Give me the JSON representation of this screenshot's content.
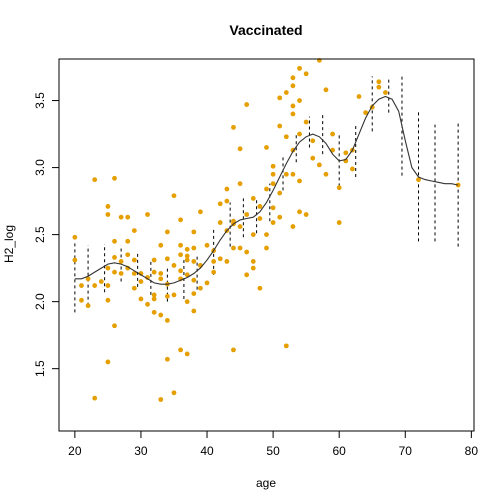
{
  "chart_data": {
    "type": "scatter",
    "title": "Vaccinated",
    "xlabel": "age",
    "ylabel": "H2_log",
    "xlim": [
      17.6,
      80.4
    ],
    "ylim": [
      1.035,
      3.81
    ],
    "x_ticks": [
      20,
      30,
      40,
      50,
      60,
      70,
      80
    ],
    "y_ticks": [
      1.5,
      2.0,
      2.5,
      3.0,
      3.5
    ],
    "point_color": "#E69F00",
    "line_color": "#333333",
    "points": [
      [
        20,
        2.48
      ],
      [
        20,
        2.31
      ],
      [
        21,
        2.12
      ],
      [
        21,
        2.01
      ],
      [
        22,
        2.17
      ],
      [
        22,
        1.97
      ],
      [
        23,
        2.91
      ],
      [
        23,
        1.28
      ],
      [
        23,
        2.12
      ],
      [
        24,
        2.15
      ],
      [
        25,
        2.01
      ],
      [
        25,
        2.25
      ],
      [
        25,
        2.65
      ],
      [
        25,
        2.71
      ],
      [
        25,
        1.55
      ],
      [
        25,
        2.12
      ],
      [
        26,
        2.92
      ],
      [
        26,
        2.33
      ],
      [
        26,
        1.82
      ],
      [
        26,
        2.45
      ],
      [
        26,
        2.22
      ],
      [
        27,
        2.63
      ],
      [
        27,
        2.21
      ],
      [
        27,
        2.3
      ],
      [
        28,
        2.63
      ],
      [
        28,
        2.35
      ],
      [
        28,
        2.25
      ],
      [
        28,
        2.45
      ],
      [
        29,
        2.1
      ],
      [
        29,
        2.31
      ],
      [
        29,
        2.21
      ],
      [
        29,
        2.53
      ],
      [
        30,
        2.02
      ],
      [
        30,
        2.21
      ],
      [
        30,
        2.15
      ],
      [
        31,
        2.65
      ],
      [
        31,
        1.98
      ],
      [
        31,
        2.18
      ],
      [
        32,
        2.22
      ],
      [
        32,
        2.02
      ],
      [
        32,
        2.05
      ],
      [
        32,
        1.92
      ],
      [
        32,
        2.31
      ],
      [
        33,
        2.42
      ],
      [
        33,
        2.17
      ],
      [
        33,
        1.27
      ],
      [
        33,
        2.21
      ],
      [
        33,
        1.9
      ],
      [
        34,
        2.32
      ],
      [
        34,
        2.04
      ],
      [
        34,
        2.13
      ],
      [
        34,
        1.86
      ],
      [
        34,
        1.57
      ],
      [
        34,
        2.52
      ],
      [
        35,
        2.79
      ],
      [
        35,
        2.05
      ],
      [
        35,
        1.32
      ],
      [
        35,
        2.27
      ],
      [
        36,
        2.42
      ],
      [
        36,
        2.61
      ],
      [
        36,
        2.35
      ],
      [
        36,
        2.23
      ],
      [
        36,
        2.17
      ],
      [
        36,
        1.64
      ],
      [
        37,
        2.39
      ],
      [
        37,
        2.34
      ],
      [
        37,
        2.2
      ],
      [
        37,
        2.31
      ],
      [
        37,
        1.61
      ],
      [
        37,
        2.0
      ],
      [
        38,
        2.52
      ],
      [
        38,
        2.3
      ],
      [
        38,
        2.16
      ],
      [
        38,
        2.4
      ],
      [
        38,
        2.06
      ],
      [
        38,
        1.93
      ],
      [
        39,
        2.67
      ],
      [
        39,
        2.27
      ],
      [
        39,
        2.1
      ],
      [
        40,
        2.14
      ],
      [
        40,
        2.42
      ],
      [
        41,
        2.38
      ],
      [
        41,
        2.3
      ],
      [
        41,
        2.22
      ],
      [
        42,
        2.73
      ],
      [
        42,
        2.59
      ],
      [
        42,
        2.32
      ],
      [
        43,
        2.84
      ],
      [
        43,
        2.53
      ],
      [
        43,
        2.3
      ],
      [
        43,
        2.75
      ],
      [
        44,
        3.3
      ],
      [
        44,
        2.6
      ],
      [
        44,
        2.4
      ],
      [
        44,
        2.58
      ],
      [
        44,
        1.64
      ],
      [
        45,
        3.14
      ],
      [
        45,
        2.88
      ],
      [
        45,
        2.56
      ],
      [
        45,
        2.4
      ],
      [
        46,
        3.47
      ],
      [
        46,
        2.65
      ],
      [
        46,
        2.2
      ],
      [
        46,
        2.37
      ],
      [
        47,
        2.77
      ],
      [
        47,
        2.5
      ],
      [
        47,
        2.3
      ],
      [
        47,
        2.25
      ],
      [
        48,
        2.71
      ],
      [
        48,
        2.62
      ],
      [
        48,
        2.1
      ],
      [
        49,
        3.15
      ],
      [
        49,
        2.84
      ],
      [
        49,
        2.5
      ],
      [
        49,
        2.4
      ],
      [
        50,
        2.95
      ],
      [
        50,
        2.88
      ],
      [
        50,
        2.7
      ],
      [
        50,
        2.59
      ],
      [
        50,
        3.01
      ],
      [
        51,
        3.31
      ],
      [
        51,
        2.81
      ],
      [
        51,
        2.63
      ],
      [
        51,
        3.52
      ],
      [
        52,
        3.56
      ],
      [
        52,
        3.23
      ],
      [
        52,
        2.95
      ],
      [
        52,
        1.67
      ],
      [
        53,
        3.61
      ],
      [
        53,
        3.46
      ],
      [
        53,
        3.4
      ],
      [
        53,
        3.13
      ],
      [
        53,
        2.95
      ],
      [
        53,
        2.56
      ],
      [
        53,
        3.67
      ],
      [
        54,
        3.74
      ],
      [
        54,
        3.5
      ],
      [
        54,
        3.25
      ],
      [
        54,
        2.9
      ],
      [
        54,
        2.67
      ],
      [
        55,
        2.65
      ],
      [
        55,
        3.7
      ],
      [
        55,
        3.34
      ],
      [
        56,
        3.2
      ],
      [
        56,
        3.07
      ],
      [
        57,
        3.8
      ],
      [
        57,
        3.02
      ],
      [
        58,
        3.58
      ],
      [
        58,
        2.95
      ],
      [
        59,
        3.13
      ],
      [
        59,
        3.25
      ],
      [
        60,
        2.59
      ],
      [
        60,
        2.85
      ],
      [
        61,
        3.11
      ],
      [
        61,
        3.05
      ],
      [
        62,
        3.13
      ],
      [
        62,
        2.99
      ],
      [
        63,
        3.53
      ],
      [
        64,
        3.41
      ],
      [
        65,
        3.45
      ],
      [
        66,
        3.64
      ],
      [
        66,
        3.6
      ],
      [
        67,
        3.56
      ],
      [
        72,
        2.91
      ],
      [
        78,
        2.87
      ]
    ],
    "smooth_line": [
      [
        20,
        2.17
      ],
      [
        21,
        2.17
      ],
      [
        22,
        2.19
      ],
      [
        23,
        2.22
      ],
      [
        24,
        2.25
      ],
      [
        25,
        2.28
      ],
      [
        26,
        2.29
      ],
      [
        27,
        2.28
      ],
      [
        28,
        2.26
      ],
      [
        29,
        2.23
      ],
      [
        30,
        2.2
      ],
      [
        31,
        2.17
      ],
      [
        32,
        2.14
      ],
      [
        33,
        2.13
      ],
      [
        34,
        2.13
      ],
      [
        35,
        2.14
      ],
      [
        36,
        2.16
      ],
      [
        37,
        2.18
      ],
      [
        38,
        2.21
      ],
      [
        39,
        2.25
      ],
      [
        40,
        2.31
      ],
      [
        41,
        2.38
      ],
      [
        42,
        2.46
      ],
      [
        43,
        2.53
      ],
      [
        44,
        2.58
      ],
      [
        45,
        2.61
      ],
      [
        46,
        2.62
      ],
      [
        47,
        2.63
      ],
      [
        48,
        2.67
      ],
      [
        49,
        2.74
      ],
      [
        50,
        2.83
      ],
      [
        51,
        2.93
      ],
      [
        52,
        3.03
      ],
      [
        53,
        3.12
      ],
      [
        54,
        3.19
      ],
      [
        55,
        3.23
      ],
      [
        56,
        3.25
      ],
      [
        57,
        3.23
      ],
      [
        58,
        3.18
      ],
      [
        59,
        3.1
      ],
      [
        60,
        3.05
      ],
      [
        61,
        3.06
      ],
      [
        62,
        3.13
      ],
      [
        63,
        3.25
      ],
      [
        64,
        3.37
      ],
      [
        65,
        3.46
      ],
      [
        66,
        3.51
      ],
      [
        67,
        3.53
      ],
      [
        68,
        3.51
      ],
      [
        69,
        3.42
      ],
      [
        70,
        3.2
      ],
      [
        71,
        3.0
      ],
      [
        72,
        2.93
      ],
      [
        73,
        2.91
      ],
      [
        74,
        2.9
      ],
      [
        75,
        2.89
      ],
      [
        76,
        2.88
      ],
      [
        77,
        2.88
      ],
      [
        78,
        2.87
      ]
    ],
    "intervals": [
      [
        20,
        1.92,
        2.45
      ],
      [
        22,
        1.97,
        2.42
      ],
      [
        24.5,
        2.07,
        2.43
      ],
      [
        27,
        2.15,
        2.42
      ],
      [
        29.5,
        2.11,
        2.37
      ],
      [
        31.5,
        2.05,
        2.3
      ],
      [
        34,
        2.0,
        2.26
      ],
      [
        36.5,
        2.02,
        2.31
      ],
      [
        38.5,
        2.09,
        2.35
      ],
      [
        41,
        2.2,
        2.55
      ],
      [
        43.5,
        2.41,
        2.74
      ],
      [
        45.5,
        2.48,
        2.77
      ],
      [
        47.5,
        2.51,
        2.76
      ],
      [
        49.5,
        2.6,
        2.88
      ],
      [
        51.5,
        2.83,
        3.08
      ],
      [
        53.5,
        3.04,
        3.26
      ],
      [
        55.5,
        3.15,
        3.38
      ],
      [
        57.5,
        3.1,
        3.4
      ],
      [
        60,
        2.86,
        3.25
      ],
      [
        62.5,
        2.93,
        3.32
      ],
      [
        65,
        3.27,
        3.68
      ],
      [
        67.5,
        3.41,
        3.66
      ],
      [
        69.5,
        2.94,
        3.7
      ],
      [
        72,
        2.45,
        3.43
      ],
      [
        74.5,
        2.45,
        3.32
      ],
      [
        78,
        2.41,
        3.33
      ]
    ]
  }
}
